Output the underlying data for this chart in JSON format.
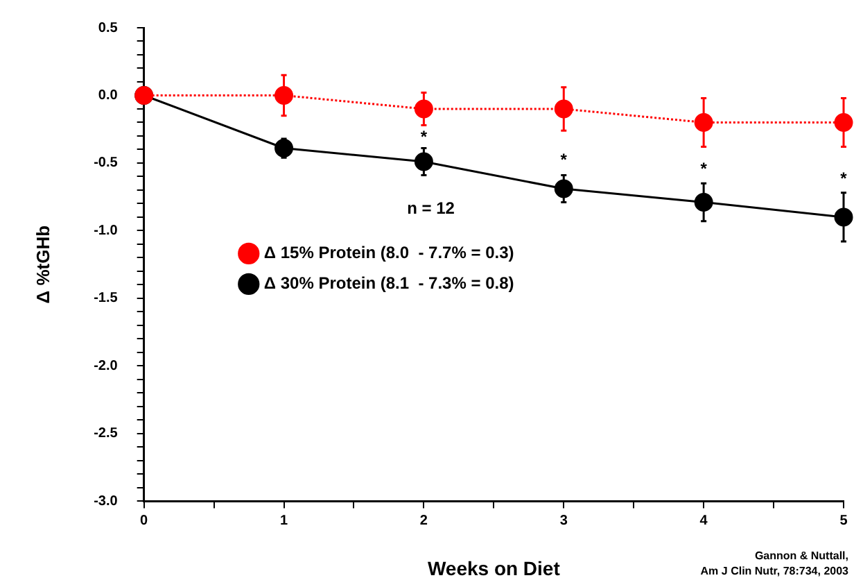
{
  "chart_data": {
    "type": "line",
    "xlabel": "Weeks on Diet",
    "ylabel": "Δ %tGHb",
    "x": [
      0,
      1,
      2,
      3,
      4,
      5
    ],
    "series": [
      {
        "name": "Δ 15% Protein (8.0  - 7.7% = 0.3)",
        "color": "#ff0000",
        "line_style": "dotted",
        "values": [
          0.0,
          0.0,
          -0.1,
          -0.1,
          -0.2,
          -0.2
        ],
        "errors": [
          null,
          0.15,
          0.12,
          0.16,
          0.18,
          0.18
        ]
      },
      {
        "name": "Δ 30% Protein (8.1  - 7.3% = 0.8)",
        "color": "#000000",
        "line_style": "solid",
        "values": [
          0.0,
          -0.39,
          -0.49,
          -0.69,
          -0.79,
          -0.9
        ],
        "errors": [
          null,
          0.07,
          0.1,
          0.1,
          0.14,
          0.18
        ]
      }
    ],
    "xlim": [
      0,
      5
    ],
    "xticks": [
      0,
      {
        "value": 0.5,
        "label": null
      },
      1,
      {
        "value": 1.5,
        "label": null
      },
      2,
      {
        "value": 2.5,
        "label": null
      },
      3,
      {
        "value": 3.5,
        "label": null
      },
      4,
      {
        "value": 4.5,
        "label": null
      },
      5
    ],
    "ylim": [
      -3.0,
      0.5
    ],
    "yticks": [
      {
        "value": 0.5,
        "label": "0.5"
      },
      {
        "value": 0.4,
        "label": null
      },
      {
        "value": 0.3,
        "label": null
      },
      {
        "value": 0.2,
        "label": null
      },
      {
        "value": 0.1,
        "label": null
      },
      {
        "value": 0,
        "label": "0.0"
      },
      {
        "value": -0.1,
        "label": null
      },
      {
        "value": -0.2,
        "label": null
      },
      {
        "value": -0.3,
        "label": null
      },
      {
        "value": -0.4,
        "label": null
      },
      {
        "value": -0.5,
        "label": "-0.5"
      },
      {
        "value": -0.6,
        "label": null
      },
      {
        "value": -0.7,
        "label": null
      },
      {
        "value": -0.8,
        "label": null
      },
      {
        "value": -0.9,
        "label": null
      },
      {
        "value": -1.0,
        "label": "-1.0"
      },
      {
        "value": -1.1,
        "label": null
      },
      {
        "value": -1.2,
        "label": null
      },
      {
        "value": -1.3,
        "label": null
      },
      {
        "value": -1.4,
        "label": null
      },
      {
        "value": -1.5,
        "label": "-1.5"
      },
      {
        "value": -1.6,
        "label": null
      },
      {
        "value": -1.7,
        "label": null
      },
      {
        "value": -1.8,
        "label": null
      },
      {
        "value": -1.9,
        "label": null
      },
      {
        "value": -2.0,
        "label": "-2.0"
      },
      {
        "value": -2.1,
        "label": null
      },
      {
        "value": -2.2,
        "label": null
      },
      {
        "value": -2.3,
        "label": null
      },
      {
        "value": -2.4,
        "label": null
      },
      {
        "value": -2.5,
        "label": "-2.5"
      },
      {
        "value": -2.6,
        "label": null
      },
      {
        "value": -2.7,
        "label": null
      },
      {
        "value": -2.8,
        "label": null
      },
      {
        "value": -2.9,
        "label": null
      },
      {
        "value": -3.0,
        "label": "-3.0"
      }
    ],
    "annotations": [
      "*",
      "*",
      "*",
      "*",
      "n = 12",
      "Gannon & Nuttall,\nAm J Clin Nutr, 78:734, 2003"
    ],
    "marker": "circle",
    "legend": "left",
    "grid": false
  }
}
